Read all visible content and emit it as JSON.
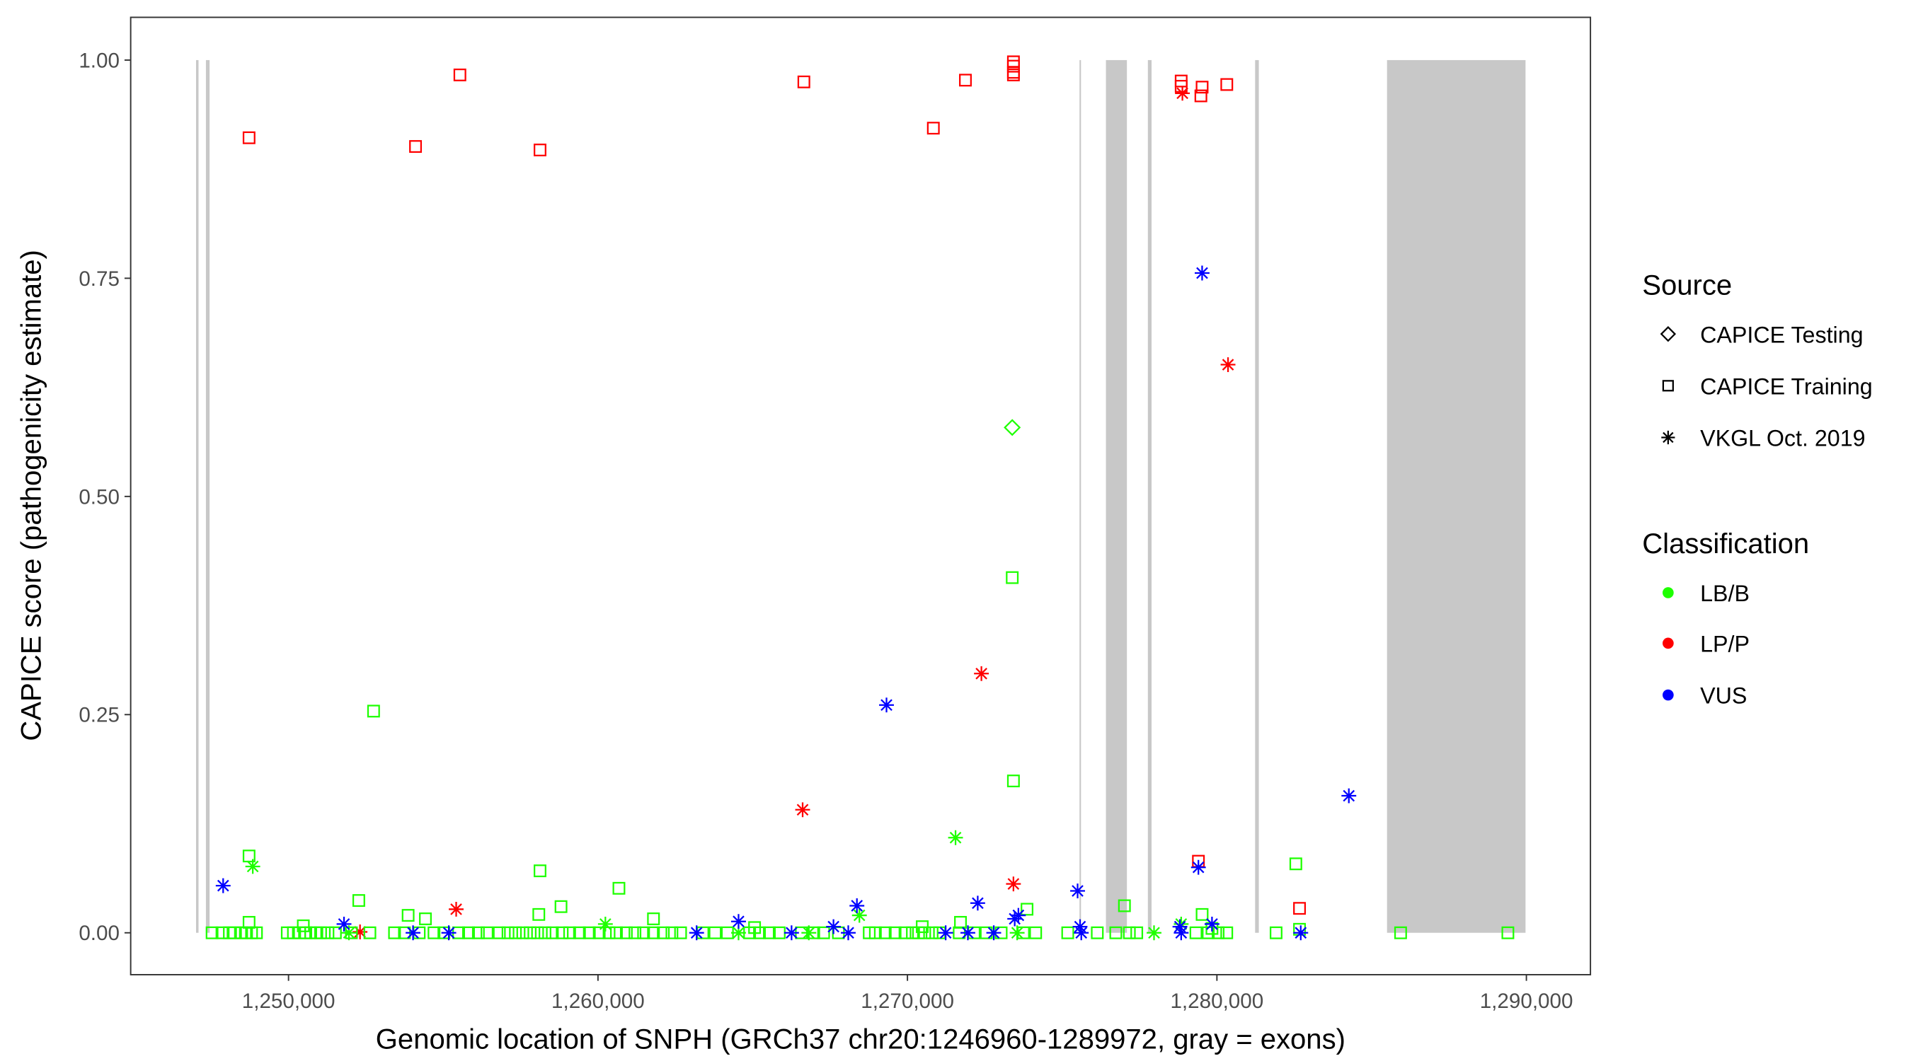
{
  "chart_data": {
    "type": "scatter",
    "xlabel": "Genomic location of SNPH (GRCh37 chr20:1246960-1289972, gray = exons)",
    "ylabel": "CAPICE score (pathogenicity estimate)",
    "xlim": [
      1244900,
      1292070
    ],
    "ylim": [
      -0.048,
      1.049
    ],
    "x_ticks": [
      1250000,
      1260000,
      1270000,
      1280000,
      1290000
    ],
    "x_tick_labels": [
      "1,250,000",
      "1,260,000",
      "1,270,000",
      "1,280,000",
      "1,290,000"
    ],
    "y_ticks": [
      0,
      0.25,
      0.5,
      0.75,
      1.0
    ],
    "y_tick_labels": [
      "0.00",
      "0.25",
      "0.50",
      "0.75",
      "1.00"
    ],
    "grid": false,
    "exons": [
      [
        1247012,
        1247092
      ],
      [
        1247331,
        1247450
      ],
      [
        1275560,
        1275600
      ],
      [
        1276414,
        1277091
      ],
      [
        1277769,
        1277888
      ],
      [
        1281234,
        1281354
      ],
      [
        1285497,
        1289972
      ]
    ],
    "colors": {
      "LB/B": "#1eff00",
      "LP/P": "#ff0000",
      "VUS": "#0000ff",
      "exon": "#c8c8c8"
    },
    "legend": {
      "placement": "right",
      "source_title": "Source",
      "source_items": [
        {
          "label": "CAPICE Testing",
          "shape": "diamond"
        },
        {
          "label": "CAPICE Training",
          "shape": "square"
        },
        {
          "label": "VKGL Oct. 2019",
          "shape": "asterisk"
        }
      ],
      "class_title": "Classification",
      "class_items": [
        {
          "label": "LB/B"
        },
        {
          "label": "LP/P"
        },
        {
          "label": "VUS"
        }
      ]
    },
    "point_fields": [
      "position",
      "score",
      "source",
      "classification"
    ],
    "points": [
      [
        1248725,
        0.911,
        "CAPICE Training",
        "LP/P"
      ],
      [
        1254104,
        0.901,
        "CAPICE Training",
        "LP/P"
      ],
      [
        1255538,
        0.983,
        "CAPICE Training",
        "LP/P"
      ],
      [
        1258127,
        0.897,
        "CAPICE Training",
        "LP/P"
      ],
      [
        1266653,
        0.975,
        "CAPICE Training",
        "LP/P"
      ],
      [
        1270837,
        0.922,
        "CAPICE Training",
        "LP/P"
      ],
      [
        1271873,
        0.977,
        "CAPICE Training",
        "LP/P"
      ],
      [
        1273425,
        0.998,
        "CAPICE Training",
        "LP/P"
      ],
      [
        1273425,
        0.993,
        "CAPICE Training",
        "LP/P"
      ],
      [
        1273425,
        0.986,
        "CAPICE Training",
        "LP/P"
      ],
      [
        1273425,
        0.983,
        "CAPICE Training",
        "LP/P"
      ],
      [
        1278845,
        0.97,
        "CAPICE Training",
        "LP/P"
      ],
      [
        1278845,
        0.976,
        "CAPICE Training",
        "LP/P"
      ],
      [
        1279482,
        0.959,
        "CAPICE Training",
        "LP/P"
      ],
      [
        1279522,
        0.969,
        "CAPICE Training",
        "LP/P"
      ],
      [
        1280319,
        0.972,
        "CAPICE Training",
        "LP/P"
      ],
      [
        1279402,
        0.082,
        "CAPICE Training",
        "LP/P"
      ],
      [
        1282669,
        0.028,
        "CAPICE Training",
        "LP/P"
      ],
      [
        1252311,
        0.001,
        "VKGL Oct. 2019",
        "LP/P"
      ],
      [
        1255418,
        0.027,
        "VKGL Oct. 2019",
        "LP/P"
      ],
      [
        1266613,
        0.141,
        "VKGL Oct. 2019",
        "LP/P"
      ],
      [
        1272390,
        0.297,
        "VKGL Oct. 2019",
        "LP/P"
      ],
      [
        1273425,
        0.056,
        "VKGL Oct. 2019",
        "LP/P"
      ],
      [
        1278885,
        0.962,
        "VKGL Oct. 2019",
        "LP/P"
      ],
      [
        1280359,
        0.651,
        "VKGL Oct. 2019",
        "LP/P"
      ],
      [
        1273386,
        0.579,
        "CAPICE Testing",
        "LB/B"
      ],
      [
        1248725,
        0.088,
        "CAPICE Training",
        "LB/B"
      ],
      [
        1252749,
        0.254,
        "CAPICE Training",
        "LB/B"
      ],
      [
        1252271,
        0.037,
        "CAPICE Training",
        "LB/B"
      ],
      [
        1253865,
        0.02,
        "CAPICE Training",
        "LB/B"
      ],
      [
        1254423,
        0.016,
        "CAPICE Training",
        "LB/B"
      ],
      [
        1258088,
        0.021,
        "CAPICE Training",
        "LB/B"
      ],
      [
        1258127,
        0.071,
        "CAPICE Training",
        "LB/B"
      ],
      [
        1258805,
        0.03,
        "CAPICE Training",
        "LB/B"
      ],
      [
        1260677,
        0.051,
        "CAPICE Training",
        "LB/B"
      ],
      [
        1261793,
        0.016,
        "CAPICE Training",
        "LB/B"
      ],
      [
        1273386,
        0.407,
        "CAPICE Training",
        "LB/B"
      ],
      [
        1273425,
        0.174,
        "CAPICE Training",
        "LB/B"
      ],
      [
        1273864,
        0.027,
        "CAPICE Training",
        "LB/B"
      ],
      [
        1277012,
        0.031,
        "CAPICE Training",
        "LB/B"
      ],
      [
        1279522,
        0.021,
        "CAPICE Training",
        "LB/B"
      ],
      [
        1282550,
        0.079,
        "CAPICE Training",
        "LB/B"
      ],
      [
        1248725,
        0.012,
        "CAPICE Training",
        "LB/B"
      ],
      [
        1250478,
        0.008,
        "CAPICE Training",
        "LB/B"
      ],
      [
        1265060,
        0.006,
        "CAPICE Training",
        "LB/B"
      ],
      [
        1270478,
        0.007,
        "CAPICE Training",
        "LB/B"
      ],
      [
        1271713,
        0.012,
        "CAPICE Training",
        "LB/B"
      ],
      [
        1279840,
        0.005,
        "CAPICE Training",
        "LB/B"
      ],
      [
        1282669,
        0.004,
        "CAPICE Training",
        "LB/B"
      ],
      [
        1247530,
        0,
        "CAPICE Training",
        "LB/B"
      ],
      [
        1247849,
        0,
        "CAPICE Training",
        "LB/B"
      ],
      [
        1248088,
        0,
        "CAPICE Training",
        "LB/B"
      ],
      [
        1248247,
        0,
        "CAPICE Training",
        "LB/B"
      ],
      [
        1248486,
        0,
        "CAPICE Training",
        "LB/B"
      ],
      [
        1248645,
        0,
        "CAPICE Training",
        "LB/B"
      ],
      [
        1248805,
        0,
        "CAPICE Training",
        "LB/B"
      ],
      [
        1248964,
        0,
        "CAPICE Training",
        "LB/B"
      ],
      [
        1249960,
        0,
        "CAPICE Training",
        "LB/B"
      ],
      [
        1250159,
        0,
        "CAPICE Training",
        "LB/B"
      ],
      [
        1250359,
        0,
        "CAPICE Training",
        "LB/B"
      ],
      [
        1250558,
        0,
        "CAPICE Training",
        "LB/B"
      ],
      [
        1250717,
        0,
        "CAPICE Training",
        "LB/B"
      ],
      [
        1250876,
        0,
        "CAPICE Training",
        "LB/B"
      ],
      [
        1251036,
        0,
        "CAPICE Training",
        "LB/B"
      ],
      [
        1251275,
        0,
        "CAPICE Training",
        "LB/B"
      ],
      [
        1251514,
        0,
        "CAPICE Training",
        "LB/B"
      ],
      [
        1252032,
        0,
        "CAPICE Training",
        "LB/B"
      ],
      [
        1252629,
        0,
        "CAPICE Training",
        "LB/B"
      ],
      [
        1253426,
        0,
        "CAPICE Training",
        "LB/B"
      ],
      [
        1253745,
        0,
        "CAPICE Training",
        "LB/B"
      ],
      [
        1254223,
        0,
        "CAPICE Training",
        "LB/B"
      ],
      [
        1254701,
        0,
        "CAPICE Training",
        "LB/B"
      ],
      [
        1255020,
        0,
        "CAPICE Training",
        "LB/B"
      ],
      [
        1255498,
        0,
        "CAPICE Training",
        "LB/B"
      ],
      [
        1255817,
        0,
        "CAPICE Training",
        "LB/B"
      ],
      [
        1256135,
        0,
        "CAPICE Training",
        "LB/B"
      ],
      [
        1256414,
        0,
        "CAPICE Training",
        "LB/B"
      ],
      [
        1256813,
        0,
        "CAPICE Training",
        "LB/B"
      ],
      [
        1257092,
        0,
        "CAPICE Training",
        "LB/B"
      ],
      [
        1257331,
        0,
        "CAPICE Training",
        "LB/B"
      ],
      [
        1257570,
        0,
        "CAPICE Training",
        "LB/B"
      ],
      [
        1257809,
        0,
        "CAPICE Training",
        "LB/B"
      ],
      [
        1258048,
        0,
        "CAPICE Training",
        "LB/B"
      ],
      [
        1258287,
        0,
        "CAPICE Training",
        "LB/B"
      ],
      [
        1258526,
        0,
        "CAPICE Training",
        "LB/B"
      ],
      [
        1258844,
        0,
        "CAPICE Training",
        "LB/B"
      ],
      [
        1259084,
        0,
        "CAPICE Training",
        "LB/B"
      ],
      [
        1259402,
        0,
        "CAPICE Training",
        "LB/B"
      ],
      [
        1259721,
        0,
        "CAPICE Training",
        "LB/B"
      ],
      [
        1260040,
        0,
        "CAPICE Training",
        "LB/B"
      ],
      [
        1260358,
        0,
        "CAPICE Training",
        "LB/B"
      ],
      [
        1260597,
        0,
        "CAPICE Training",
        "LB/B"
      ],
      [
        1260916,
        0,
        "CAPICE Training",
        "LB/B"
      ],
      [
        1261195,
        0,
        "CAPICE Training",
        "LB/B"
      ],
      [
        1261474,
        0,
        "CAPICE Training",
        "LB/B"
      ],
      [
        1261793,
        0,
        "CAPICE Training",
        "LB/B"
      ],
      [
        1262111,
        0,
        "CAPICE Training",
        "LB/B"
      ],
      [
        1262390,
        0,
        "CAPICE Training",
        "LB/B"
      ],
      [
        1262669,
        0,
        "CAPICE Training",
        "LB/B"
      ],
      [
        1263386,
        0,
        "CAPICE Training",
        "LB/B"
      ],
      [
        1263785,
        0,
        "CAPICE Training",
        "LB/B"
      ],
      [
        1264183,
        0,
        "CAPICE Training",
        "LB/B"
      ],
      [
        1264900,
        0,
        "CAPICE Training",
        "LB/B"
      ],
      [
        1265219,
        0,
        "CAPICE Training",
        "LB/B"
      ],
      [
        1265538,
        0,
        "CAPICE Training",
        "LB/B"
      ],
      [
        1265856,
        0,
        "CAPICE Training",
        "LB/B"
      ],
      [
        1266573,
        0,
        "CAPICE Training",
        "LB/B"
      ],
      [
        1266972,
        0,
        "CAPICE Training",
        "LB/B"
      ],
      [
        1267291,
        0,
        "CAPICE Training",
        "LB/B"
      ],
      [
        1267769,
        0,
        "CAPICE Training",
        "LB/B"
      ],
      [
        1268765,
        0,
        "CAPICE Training",
        "LB/B"
      ],
      [
        1268964,
        0,
        "CAPICE Training",
        "LB/B"
      ],
      [
        1269283,
        0,
        "CAPICE Training",
        "LB/B"
      ],
      [
        1269601,
        0,
        "CAPICE Training",
        "LB/B"
      ],
      [
        1269920,
        0,
        "CAPICE Training",
        "LB/B"
      ],
      [
        1270159,
        0,
        "CAPICE Training",
        "LB/B"
      ],
      [
        1270358,
        0,
        "CAPICE Training",
        "LB/B"
      ],
      [
        1270557,
        0,
        "CAPICE Training",
        "LB/B"
      ],
      [
        1270796,
        0,
        "CAPICE Training",
        "LB/B"
      ],
      [
        1271036,
        0,
        "CAPICE Training",
        "LB/B"
      ],
      [
        1271673,
        0,
        "CAPICE Training",
        "LB/B"
      ],
      [
        1272151,
        0,
        "CAPICE Training",
        "LB/B"
      ],
      [
        1272549,
        0,
        "CAPICE Training",
        "LB/B"
      ],
      [
        1273028,
        0,
        "CAPICE Training",
        "LB/B"
      ],
      [
        1273745,
        0,
        "CAPICE Training",
        "LB/B"
      ],
      [
        1274143,
        0,
        "CAPICE Training",
        "LB/B"
      ],
      [
        1275179,
        0,
        "CAPICE Training",
        "LB/B"
      ],
      [
        1276135,
        0,
        "CAPICE Training",
        "LB/B"
      ],
      [
        1276733,
        0,
        "CAPICE Training",
        "LB/B"
      ],
      [
        1277171,
        0,
        "CAPICE Training",
        "LB/B"
      ],
      [
        1277410,
        0,
        "CAPICE Training",
        "LB/B"
      ],
      [
        1279322,
        0,
        "CAPICE Training",
        "LB/B"
      ],
      [
        1279721,
        0,
        "CAPICE Training",
        "LB/B"
      ],
      [
        1280039,
        0,
        "CAPICE Training",
        "LB/B"
      ],
      [
        1280318,
        0,
        "CAPICE Training",
        "LB/B"
      ],
      [
        1281912,
        0,
        "CAPICE Training",
        "LB/B"
      ],
      [
        1285936,
        0,
        "CAPICE Training",
        "LB/B"
      ],
      [
        1289402,
        0,
        "CAPICE Training",
        "LB/B"
      ],
      [
        1248845,
        0.076,
        "VKGL Oct. 2019",
        "LB/B"
      ],
      [
        1271554,
        0.109,
        "VKGL Oct. 2019",
        "LB/B"
      ],
      [
        1260239,
        0.01,
        "VKGL Oct. 2019",
        "LB/B"
      ],
      [
        1268447,
        0.02,
        "VKGL Oct. 2019",
        "LB/B"
      ],
      [
        1251952,
        0,
        "VKGL Oct. 2019",
        "LB/B"
      ],
      [
        1266813,
        0,
        "VKGL Oct. 2019",
        "LB/B"
      ],
      [
        1273545,
        0,
        "VKGL Oct. 2019",
        "LB/B"
      ],
      [
        1277968,
        0,
        "VKGL Oct. 2019",
        "LB/B"
      ],
      [
        1278845,
        0.01,
        "VKGL Oct. 2019",
        "LB/B"
      ],
      [
        1264542,
        0,
        "VKGL Oct. 2019",
        "LB/B"
      ],
      [
        1247888,
        0.054,
        "VKGL Oct. 2019",
        "VUS"
      ],
      [
        1251793,
        0.01,
        "VKGL Oct. 2019",
        "VUS"
      ],
      [
        1254024,
        0,
        "VKGL Oct. 2019",
        "VUS"
      ],
      [
        1255179,
        0,
        "VKGL Oct. 2019",
        "VUS"
      ],
      [
        1263187,
        0,
        "VKGL Oct. 2019",
        "VUS"
      ],
      [
        1264542,
        0.013,
        "VKGL Oct. 2019",
        "VUS"
      ],
      [
        1266255,
        0,
        "VKGL Oct. 2019",
        "VUS"
      ],
      [
        1267610,
        0.007,
        "VKGL Oct. 2019",
        "VUS"
      ],
      [
        1268088,
        0,
        "VKGL Oct. 2019",
        "VUS"
      ],
      [
        1268367,
        0.031,
        "VKGL Oct. 2019",
        "VUS"
      ],
      [
        1269323,
        0.261,
        "VKGL Oct. 2019",
        "VUS"
      ],
      [
        1271235,
        0,
        "VKGL Oct. 2019",
        "VUS"
      ],
      [
        1271952,
        0,
        "VKGL Oct. 2019",
        "VUS"
      ],
      [
        1272271,
        0.034,
        "VKGL Oct. 2019",
        "VUS"
      ],
      [
        1272789,
        0,
        "VKGL Oct. 2019",
        "VUS"
      ],
      [
        1273466,
        0.016,
        "VKGL Oct. 2019",
        "VUS"
      ],
      [
        1273585,
        0.02,
        "VKGL Oct. 2019",
        "VUS"
      ],
      [
        1275498,
        0.048,
        "VKGL Oct. 2019",
        "VUS"
      ],
      [
        1275577,
        0.007,
        "VKGL Oct. 2019",
        "VUS"
      ],
      [
        1275617,
        0,
        "VKGL Oct. 2019",
        "VUS"
      ],
      [
        1278805,
        0.007,
        "VKGL Oct. 2019",
        "VUS"
      ],
      [
        1278845,
        0,
        "VKGL Oct. 2019",
        "VUS"
      ],
      [
        1279402,
        0.075,
        "VKGL Oct. 2019",
        "VUS"
      ],
      [
        1279522,
        0.756,
        "VKGL Oct. 2019",
        "VUS"
      ],
      [
        1279841,
        0.01,
        "VKGL Oct. 2019",
        "VUS"
      ],
      [
        1282709,
        0,
        "VKGL Oct. 2019",
        "VUS"
      ],
      [
        1284263,
        0.157,
        "VKGL Oct. 2019",
        "VUS"
      ]
    ]
  }
}
